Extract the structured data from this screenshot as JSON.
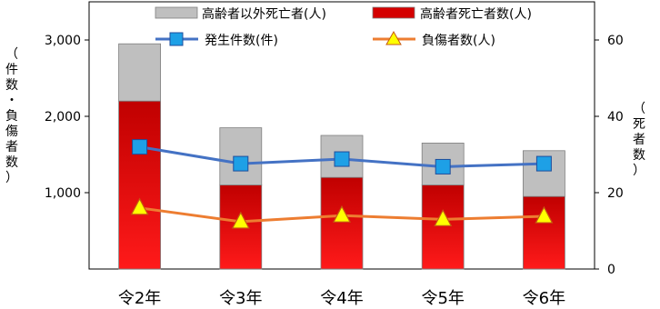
{
  "chart_data": {
    "type": "bar",
    "categories": [
      "令2年",
      "令3年",
      "令4年",
      "令5年",
      "令6年"
    ],
    "left_axis": {
      "label": "（件数・負傷者数）",
      "ticks": [
        "1,000",
        "2,000",
        "3,000"
      ],
      "tick_values": [
        1000,
        2000,
        3000
      ],
      "ylim": [
        0,
        3500
      ]
    },
    "right_axis": {
      "label": "（死者数）",
      "ticks": [
        "0",
        "20",
        "40",
        "60"
      ],
      "tick_values": [
        0,
        20,
        40,
        60
      ],
      "ylim": [
        0,
        70
      ]
    },
    "series": [
      {
        "name": "高齢者死亡者数(人)",
        "kind": "stacked-bar",
        "axis": "right",
        "values": [
          44,
          22,
          24,
          22,
          19
        ],
        "color": "#d40000"
      },
      {
        "name": "高齢者以外死亡者(人)",
        "kind": "stacked-bar",
        "axis": "right",
        "values": [
          15,
          15,
          11,
          11,
          12
        ],
        "color": "#bfbfbf"
      },
      {
        "name": "発生件数(件)",
        "kind": "line",
        "axis": "left",
        "values": [
          1600,
          1380,
          1440,
          1340,
          1380
        ],
        "color": "#4472c4",
        "marker_color": "#1ea0e6"
      },
      {
        "name": "負傷者数(人)",
        "kind": "line",
        "axis": "left",
        "values": [
          800,
          620,
          700,
          650,
          690
        ],
        "color": "#ed7d31",
        "marker_color": "#ffff00"
      }
    ],
    "grid": false,
    "legend": "top"
  }
}
